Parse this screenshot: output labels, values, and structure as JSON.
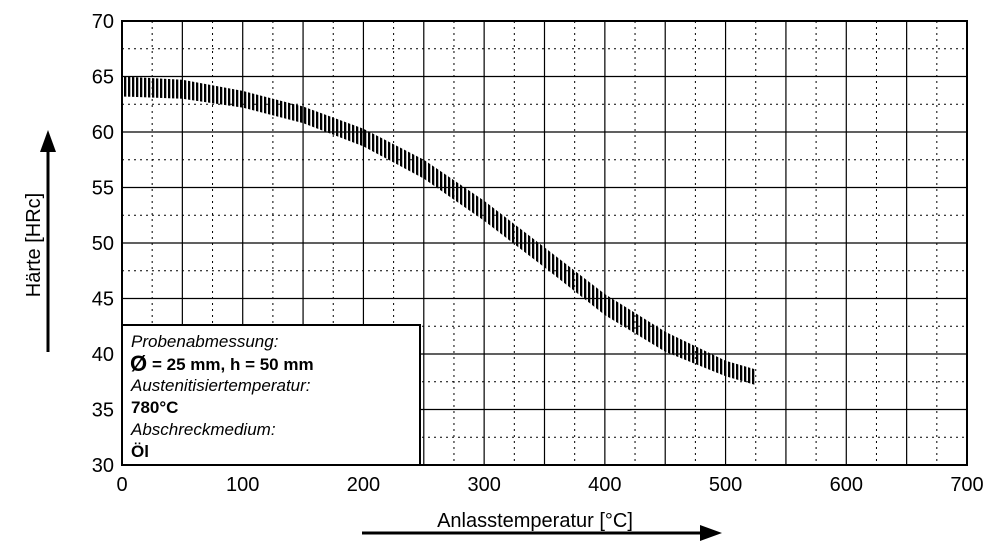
{
  "chart_data": {
    "type": "area",
    "xlabel": "Anlasstemperatur [°C]",
    "ylabel": "Härte [HRc]",
    "xlim": [
      0,
      700
    ],
    "ylim": [
      30,
      70
    ],
    "x_ticks": [
      "0",
      "100",
      "200",
      "300",
      "400",
      "500",
      "600",
      "700"
    ],
    "y_ticks": [
      "30",
      "35",
      "40",
      "45",
      "50",
      "55",
      "60",
      "65",
      "70"
    ],
    "grid": true,
    "series": [
      {
        "x": [
          0,
          50,
          100,
          150,
          200,
          250,
          300,
          350,
          400,
          450,
          500,
          525
        ],
        "upper": [
          65,
          64.7,
          63.7,
          62.3,
          60.3,
          57.5,
          53.8,
          49.6,
          45.4,
          42.0,
          39.4,
          38.6
        ],
        "lower": [
          63.2,
          63.0,
          62.2,
          60.8,
          58.7,
          55.8,
          52.0,
          47.8,
          43.5,
          40.2,
          38.0,
          37.2
        ]
      }
    ]
  },
  "legend_box": {
    "line1": "Probenabmessung:",
    "line2_symbol": "Ø",
    "line2": "= 25 mm, h = 50 mm",
    "line3": "Austenitisiertemperatur:",
    "line4": "780°C",
    "line5": "Abschreckmedium:",
    "line6": "Öl"
  }
}
